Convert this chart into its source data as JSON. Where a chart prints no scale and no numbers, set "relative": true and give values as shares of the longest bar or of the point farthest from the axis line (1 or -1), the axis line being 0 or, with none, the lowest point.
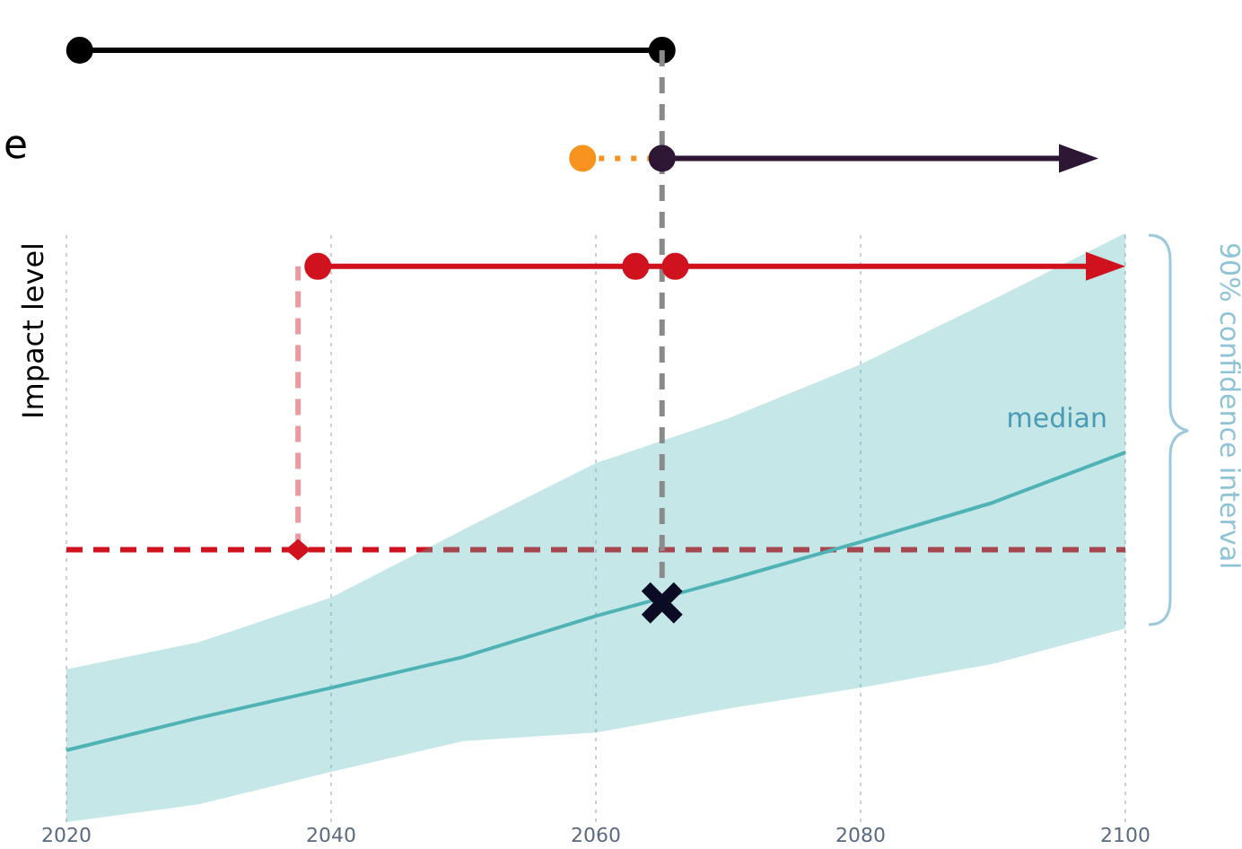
{
  "chart_data": {
    "type": "line",
    "relative": true,
    "ylabel": "Impact level",
    "xlim": [
      2020,
      2100
    ],
    "xticks": [
      2020,
      2040,
      2060,
      2080,
      2100
    ],
    "grid": "x",
    "ref_lines": [
      {
        "axis": "y",
        "value": 0.353,
        "color": "#d0121f",
        "line_style": "dashed"
      }
    ],
    "annotations": [
      "e",
      "90% confidence interval"
    ],
    "series": [
      {
        "name": "median",
        "color": "#4fb3b5",
        "x": [
          2020,
          2030,
          2040,
          2050,
          2060,
          2070,
          2080,
          2090,
          2100
        ],
        "values": [
          0.093,
          0.135,
          0.174,
          0.214,
          0.267,
          0.314,
          0.363,
          0.414,
          0.479
        ],
        "lower": [
          0,
          0.023,
          0.065,
          0.105,
          0.116,
          0.147,
          0.174,
          0.205,
          0.251
        ],
        "upper": [
          0.198,
          0.233,
          0.291,
          0.379,
          0.465,
          0.523,
          0.593,
          0.677,
          0.763
        ]
      },
      {
        "color": "#000000",
        "x": [
          2021,
          2065
        ],
        "values": [
          1,
          1
        ],
        "marker": "circle",
        "line_style": "solid"
      },
      {
        "color": "#8a8a8a",
        "x": [
          2065,
          2065
        ],
        "values": [
          1,
          0.31
        ],
        "marker": "none",
        "line_style": "dashed"
      },
      {
        "color": "#f7931e",
        "x": [
          2059,
          2065
        ],
        "values": [
          0.86,
          0.86
        ],
        "marker": "none",
        "line_style": "dotted"
      },
      {
        "type": "scatter",
        "color": "#f7931e",
        "x": [
          2059
        ],
        "values": [
          0.86
        ],
        "marker": "circle"
      },
      {
        "type": "scatter",
        "color": "#2e1735",
        "x": [
          2065
        ],
        "values": [
          0.86
        ],
        "marker": "circle"
      },
      {
        "color": "#ec9aa0",
        "x": [
          2037.5,
          2037.5
        ],
        "values": [
          0.353,
          0.72
        ],
        "marker": "none",
        "line_style": "dashed"
      },
      {
        "color": "#d0121f",
        "x": [
          2039,
          2063,
          2066
        ],
        "values": [
          0.72,
          0.72,
          0.72
        ],
        "marker": "circle",
        "line_style": "solid"
      },
      {
        "type": "scatter",
        "color": "#d0121f",
        "x": [
          2037.5
        ],
        "values": [
          0.353
        ],
        "marker": "diamond"
      },
      {
        "type": "scatter",
        "color": "#0b0b25",
        "x": [
          2065
        ],
        "values": [
          0.284
        ],
        "marker": "cross"
      }
    ]
  }
}
